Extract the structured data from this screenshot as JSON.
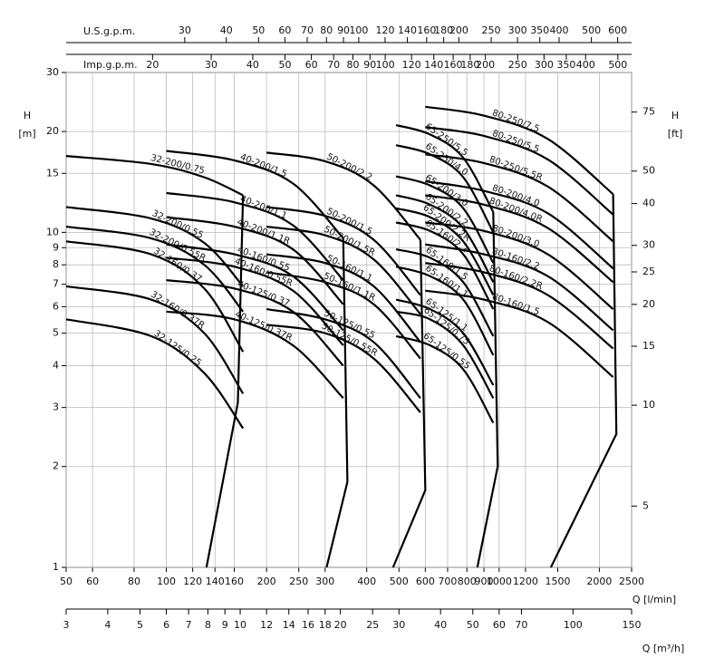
{
  "chart_data": {
    "type": "line",
    "xlog": true,
    "ylog": true,
    "grid": true,
    "color": "#000000",
    "xlim": [
      50,
      2500
    ],
    "xticks": [
      50,
      60,
      80,
      100,
      120,
      140,
      160,
      200,
      250,
      300,
      400,
      500,
      600,
      700,
      800,
      900,
      1000,
      1200,
      1500,
      2000,
      2500
    ],
    "x_label": "Q [l/min]",
    "x2lim": [
      3,
      150
    ],
    "x2ticks": [
      3,
      4,
      5,
      6,
      7,
      8,
      9,
      10,
      12,
      14,
      16,
      18,
      20,
      25,
      30,
      40,
      50,
      60,
      70,
      100,
      150
    ],
    "x2_label": "Q [m³/h]",
    "x3lim": [
      13.21,
      660.5
    ],
    "x3ticks": [
      30,
      40,
      50,
      60,
      70,
      80,
      90,
      100,
      120,
      140,
      160,
      180,
      200,
      250,
      300,
      350,
      400,
      500,
      600
    ],
    "x3_label": "U.S.g.p.m.",
    "x4lim": [
      11.0,
      549.9
    ],
    "x4ticks": [
      20,
      30,
      40,
      50,
      60,
      70,
      80,
      90,
      100,
      120,
      140,
      160,
      180,
      200,
      250,
      300,
      350,
      400,
      500
    ],
    "x4_label": "Imp.g.p.m.",
    "ylim": [
      1,
      30
    ],
    "yticks": [
      1,
      2,
      3,
      4,
      5,
      6,
      7,
      8,
      9,
      10,
      15,
      20,
      30
    ],
    "y_label": "H",
    "y_unit": "[m]",
    "y2lim": [
      3.281,
      98.43
    ],
    "y2ticks": [
      5,
      10,
      15,
      20,
      25,
      30,
      40,
      50,
      75
    ],
    "y2_label": "H",
    "y2_unit": "[ft]",
    "series": [
      {
        "name": "32-200/0.75",
        "x": [
          50,
          90,
          130,
          170
        ],
        "y": [
          16.9,
          16.0,
          14.6,
          12.9
        ]
      },
      {
        "name": "32-200/0.55",
        "x": [
          50,
          90,
          130,
          170
        ],
        "y": [
          11.9,
          11.0,
          9.3,
          6.9
        ]
      },
      {
        "name": "32-200/0.55R",
        "x": [
          50,
          90,
          130,
          170
        ],
        "y": [
          10.4,
          9.6,
          8.0,
          5.8
        ]
      },
      {
        "name": "32-160/0.37",
        "x": [
          50,
          90,
          130,
          170
        ],
        "y": [
          9.4,
          8.6,
          6.8,
          4.4
        ]
      },
      {
        "name": "32-160/0.37R",
        "x": [
          50,
          90,
          130,
          170
        ],
        "y": [
          6.9,
          6.3,
          5.0,
          3.3
        ]
      },
      {
        "name": "32-125/0.25",
        "x": [
          50,
          90,
          130,
          170
        ],
        "y": [
          5.5,
          4.9,
          3.8,
          2.6
        ]
      },
      {
        "x": [
          170,
          164,
          132
        ],
        "y": [
          12.9,
          3.1,
          1
        ]
      },
      {
        "name": "40-200/1.5",
        "x": [
          100,
          160,
          240,
          340
        ],
        "y": [
          17.5,
          16.4,
          14.0,
          9.6
        ]
      },
      {
        "name": "40-200/1.1",
        "x": [
          100,
          160,
          240,
          340
        ],
        "y": [
          13.1,
          12.3,
          10.5,
          7.2
        ]
      },
      {
        "name": "40-200/1.1R",
        "x": [
          100,
          160,
          240,
          340
        ],
        "y": [
          11.1,
          10.4,
          8.9,
          6.1
        ]
      },
      {
        "name": "40-160/0.55",
        "x": [
          100,
          160,
          240,
          340
        ],
        "y": [
          9.2,
          8.6,
          7.4,
          5.1
        ]
      },
      {
        "name": "40-160/0.55R",
        "x": [
          100,
          160,
          240,
          340
        ],
        "y": [
          8.4,
          7.9,
          6.7,
          4.6
        ]
      },
      {
        "name": "40-125/0.37",
        "x": [
          100,
          160,
          240,
          340
        ],
        "y": [
          7.2,
          6.8,
          5.8,
          4.0
        ]
      },
      {
        "name": "40-125/0.37R",
        "x": [
          100,
          160,
          240,
          340
        ],
        "y": [
          5.8,
          5.5,
          4.6,
          3.2
        ]
      },
      {
        "x": [
          340,
          350,
          303
        ],
        "y": [
          9.6,
          1.8,
          1
        ]
      },
      {
        "name": "50-200/2.2",
        "x": [
          200,
          300,
          420,
          580
        ],
        "y": [
          17.3,
          16.3,
          13.8,
          9.5
        ]
      },
      {
        "name": "50-200/1.5",
        "x": [
          200,
          300,
          420,
          580
        ],
        "y": [
          11.9,
          11.2,
          9.5,
          6.5
        ]
      },
      {
        "name": "50-200/1.5R",
        "x": [
          200,
          300,
          420,
          580
        ],
        "y": [
          10.4,
          9.8,
          8.3,
          5.7
        ]
      },
      {
        "name": "50-160/1.1",
        "x": [
          200,
          300,
          420,
          580
        ],
        "y": [
          8.6,
          8.1,
          6.9,
          4.7
        ]
      },
      {
        "name": "50-160/1.1R",
        "x": [
          200,
          300,
          420,
          580
        ],
        "y": [
          7.6,
          7.1,
          6.1,
          4.2
        ]
      },
      {
        "name": "50-125/0.55",
        "x": [
          200,
          300,
          420,
          580
        ],
        "y": [
          5.9,
          5.5,
          4.7,
          3.2
        ]
      },
      {
        "name": "50-125/0.55R",
        "x": [
          200,
          300,
          420,
          580
        ],
        "y": [
          5.3,
          5.0,
          4.2,
          2.9
        ]
      },
      {
        "x": [
          580,
          600,
          480
        ],
        "y": [
          9.5,
          1.7,
          1
        ]
      },
      {
        "name": "65-250/5.5",
        "x": [
          490,
          620,
          780,
          960
        ],
        "y": [
          20.9,
          19.6,
          16.7,
          11.5
        ]
      },
      {
        "name": "65-250/4.0",
        "x": [
          490,
          620,
          780,
          960
        ],
        "y": [
          18.2,
          17.1,
          14.6,
          10.0
        ]
      },
      {
        "name": "65-200/3.0",
        "x": [
          490,
          620,
          780,
          960
        ],
        "y": [
          14.7,
          13.8,
          11.8,
          8.1
        ]
      },
      {
        "name": "65-200/2.2",
        "x": [
          490,
          620,
          780,
          960
        ],
        "y": [
          12.9,
          12.1,
          10.3,
          7.1
        ]
      },
      {
        "name": "65-200/2.2R",
        "x": [
          490,
          620,
          780,
          960
        ],
        "y": [
          11.8,
          11.1,
          9.4,
          6.5
        ]
      },
      {
        "name": "65-160/2.2",
        "x": [
          490,
          620,
          780,
          960
        ],
        "y": [
          10.7,
          10.1,
          8.6,
          5.9
        ]
      },
      {
        "name": "65-160/1.5",
        "x": [
          490,
          620,
          780,
          960
        ],
        "y": [
          8.9,
          8.4,
          7.1,
          4.9
        ]
      },
      {
        "name": "65-160/1.1",
        "x": [
          490,
          620,
          780,
          960
        ],
        "y": [
          7.9,
          7.4,
          6.3,
          4.3
        ]
      },
      {
        "name": "65-125/1.1",
        "x": [
          490,
          620,
          780,
          960
        ],
        "y": [
          6.3,
          5.9,
          5.0,
          3.5
        ]
      },
      {
        "name": "65-125/0.75",
        "x": [
          490,
          620,
          780,
          960
        ],
        "y": [
          5.8,
          5.5,
          4.6,
          3.2
        ]
      },
      {
        "name": "65-125/0.55",
        "x": [
          490,
          620,
          780,
          960
        ],
        "y": [
          4.9,
          4.6,
          3.9,
          2.7
        ]
      },
      {
        "x": [
          960,
          990,
          860
        ],
        "y": [
          11.5,
          2.0,
          1
        ]
      },
      {
        "name": "80-250/7.5",
        "x": [
          600,
          900,
          1400,
          2200
        ],
        "y": [
          23.7,
          22.3,
          19.0,
          13.0
        ]
      },
      {
        "name": "80-250/5.5",
        "x": [
          600,
          900,
          1400,
          2200
        ],
        "y": [
          20.6,
          19.4,
          16.5,
          11.3
        ]
      },
      {
        "name": "80-250/5.5R",
        "x": [
          600,
          900,
          1400,
          2200
        ],
        "y": [
          17.1,
          16.1,
          13.7,
          9.4
        ]
      },
      {
        "name": "80-200/4.0",
        "x": [
          600,
          900,
          1400,
          2200
        ],
        "y": [
          14.2,
          13.3,
          11.4,
          7.8
        ]
      },
      {
        "name": "80-200/4.0R",
        "x": [
          600,
          900,
          1400,
          2200
        ],
        "y": [
          12.9,
          12.1,
          10.3,
          7.1
        ]
      },
      {
        "name": "80-200/3.0",
        "x": [
          600,
          900,
          1400,
          2200
        ],
        "y": [
          10.7,
          10.1,
          8.6,
          5.9
        ]
      },
      {
        "name": "80-160/2.2",
        "x": [
          600,
          900,
          1400,
          2200
        ],
        "y": [
          9.2,
          8.6,
          7.4,
          5.1
        ]
      },
      {
        "name": "80-160/2.2R",
        "x": [
          600,
          900,
          1400,
          2200
        ],
        "y": [
          8.1,
          7.6,
          6.5,
          4.5
        ]
      },
      {
        "name": "80-160/1.5",
        "x": [
          600,
          900,
          1400,
          2200
        ],
        "y": [
          6.7,
          6.3,
          5.4,
          3.7
        ]
      },
      {
        "x": [
          2200,
          2250,
          1430
        ],
        "y": [
          13.0,
          2.5,
          1
        ]
      }
    ]
  }
}
